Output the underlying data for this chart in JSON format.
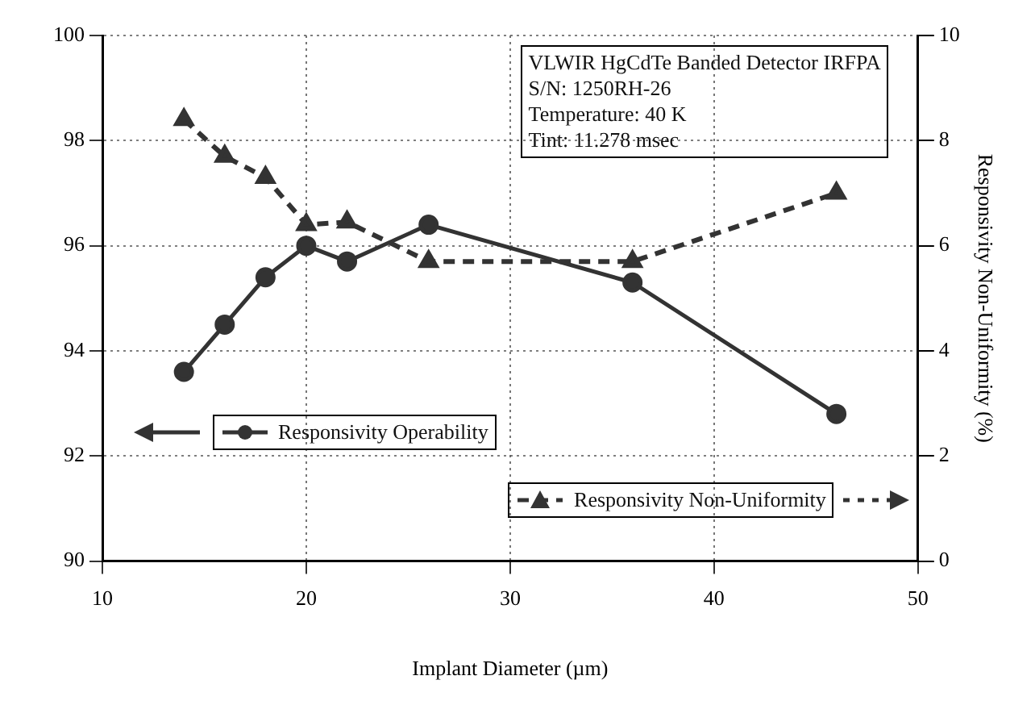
{
  "chart_data": {
    "type": "line",
    "xlabel": "Implant Diameter (µm)",
    "y2label": "Responsivity Non-Uniformity (%)",
    "x": [
      14,
      16,
      18,
      20,
      22,
      26,
      36,
      46
    ],
    "series": [
      {
        "name": "Responsivity Operability",
        "color": "#333333",
        "values": [
          93.6,
          94.5,
          95.4,
          96.0,
          95.7,
          96.4,
          95.3,
          92.8
        ],
        "marker": "circle",
        "line_style": "solid"
      },
      {
        "name": "Responsivity Non-Uniformity",
        "color": "#333333",
        "values": [
          8.4,
          7.7,
          7.3,
          6.4,
          6.45,
          5.7,
          5.7,
          7.0
        ],
        "marker": "triangle",
        "line_style": "dashed",
        "axis": "y2"
      }
    ],
    "xlim": [
      10,
      50
    ],
    "xticks": [
      10,
      20,
      30,
      40,
      50
    ],
    "ylim": [
      90,
      100
    ],
    "yticks": [
      90,
      92,
      94,
      96,
      98,
      100
    ],
    "y2lim": [
      0,
      10
    ],
    "y2ticks": [
      0,
      2,
      4,
      6,
      8,
      10
    ],
    "grid": true,
    "legend": "bottom",
    "annotations": [
      "VLWIR HgCdTe Banded Detector IRFPA",
      "S/N: 1250RH-26",
      "Temperature: 40 K",
      "Tint:  11.278 msec"
    ]
  }
}
